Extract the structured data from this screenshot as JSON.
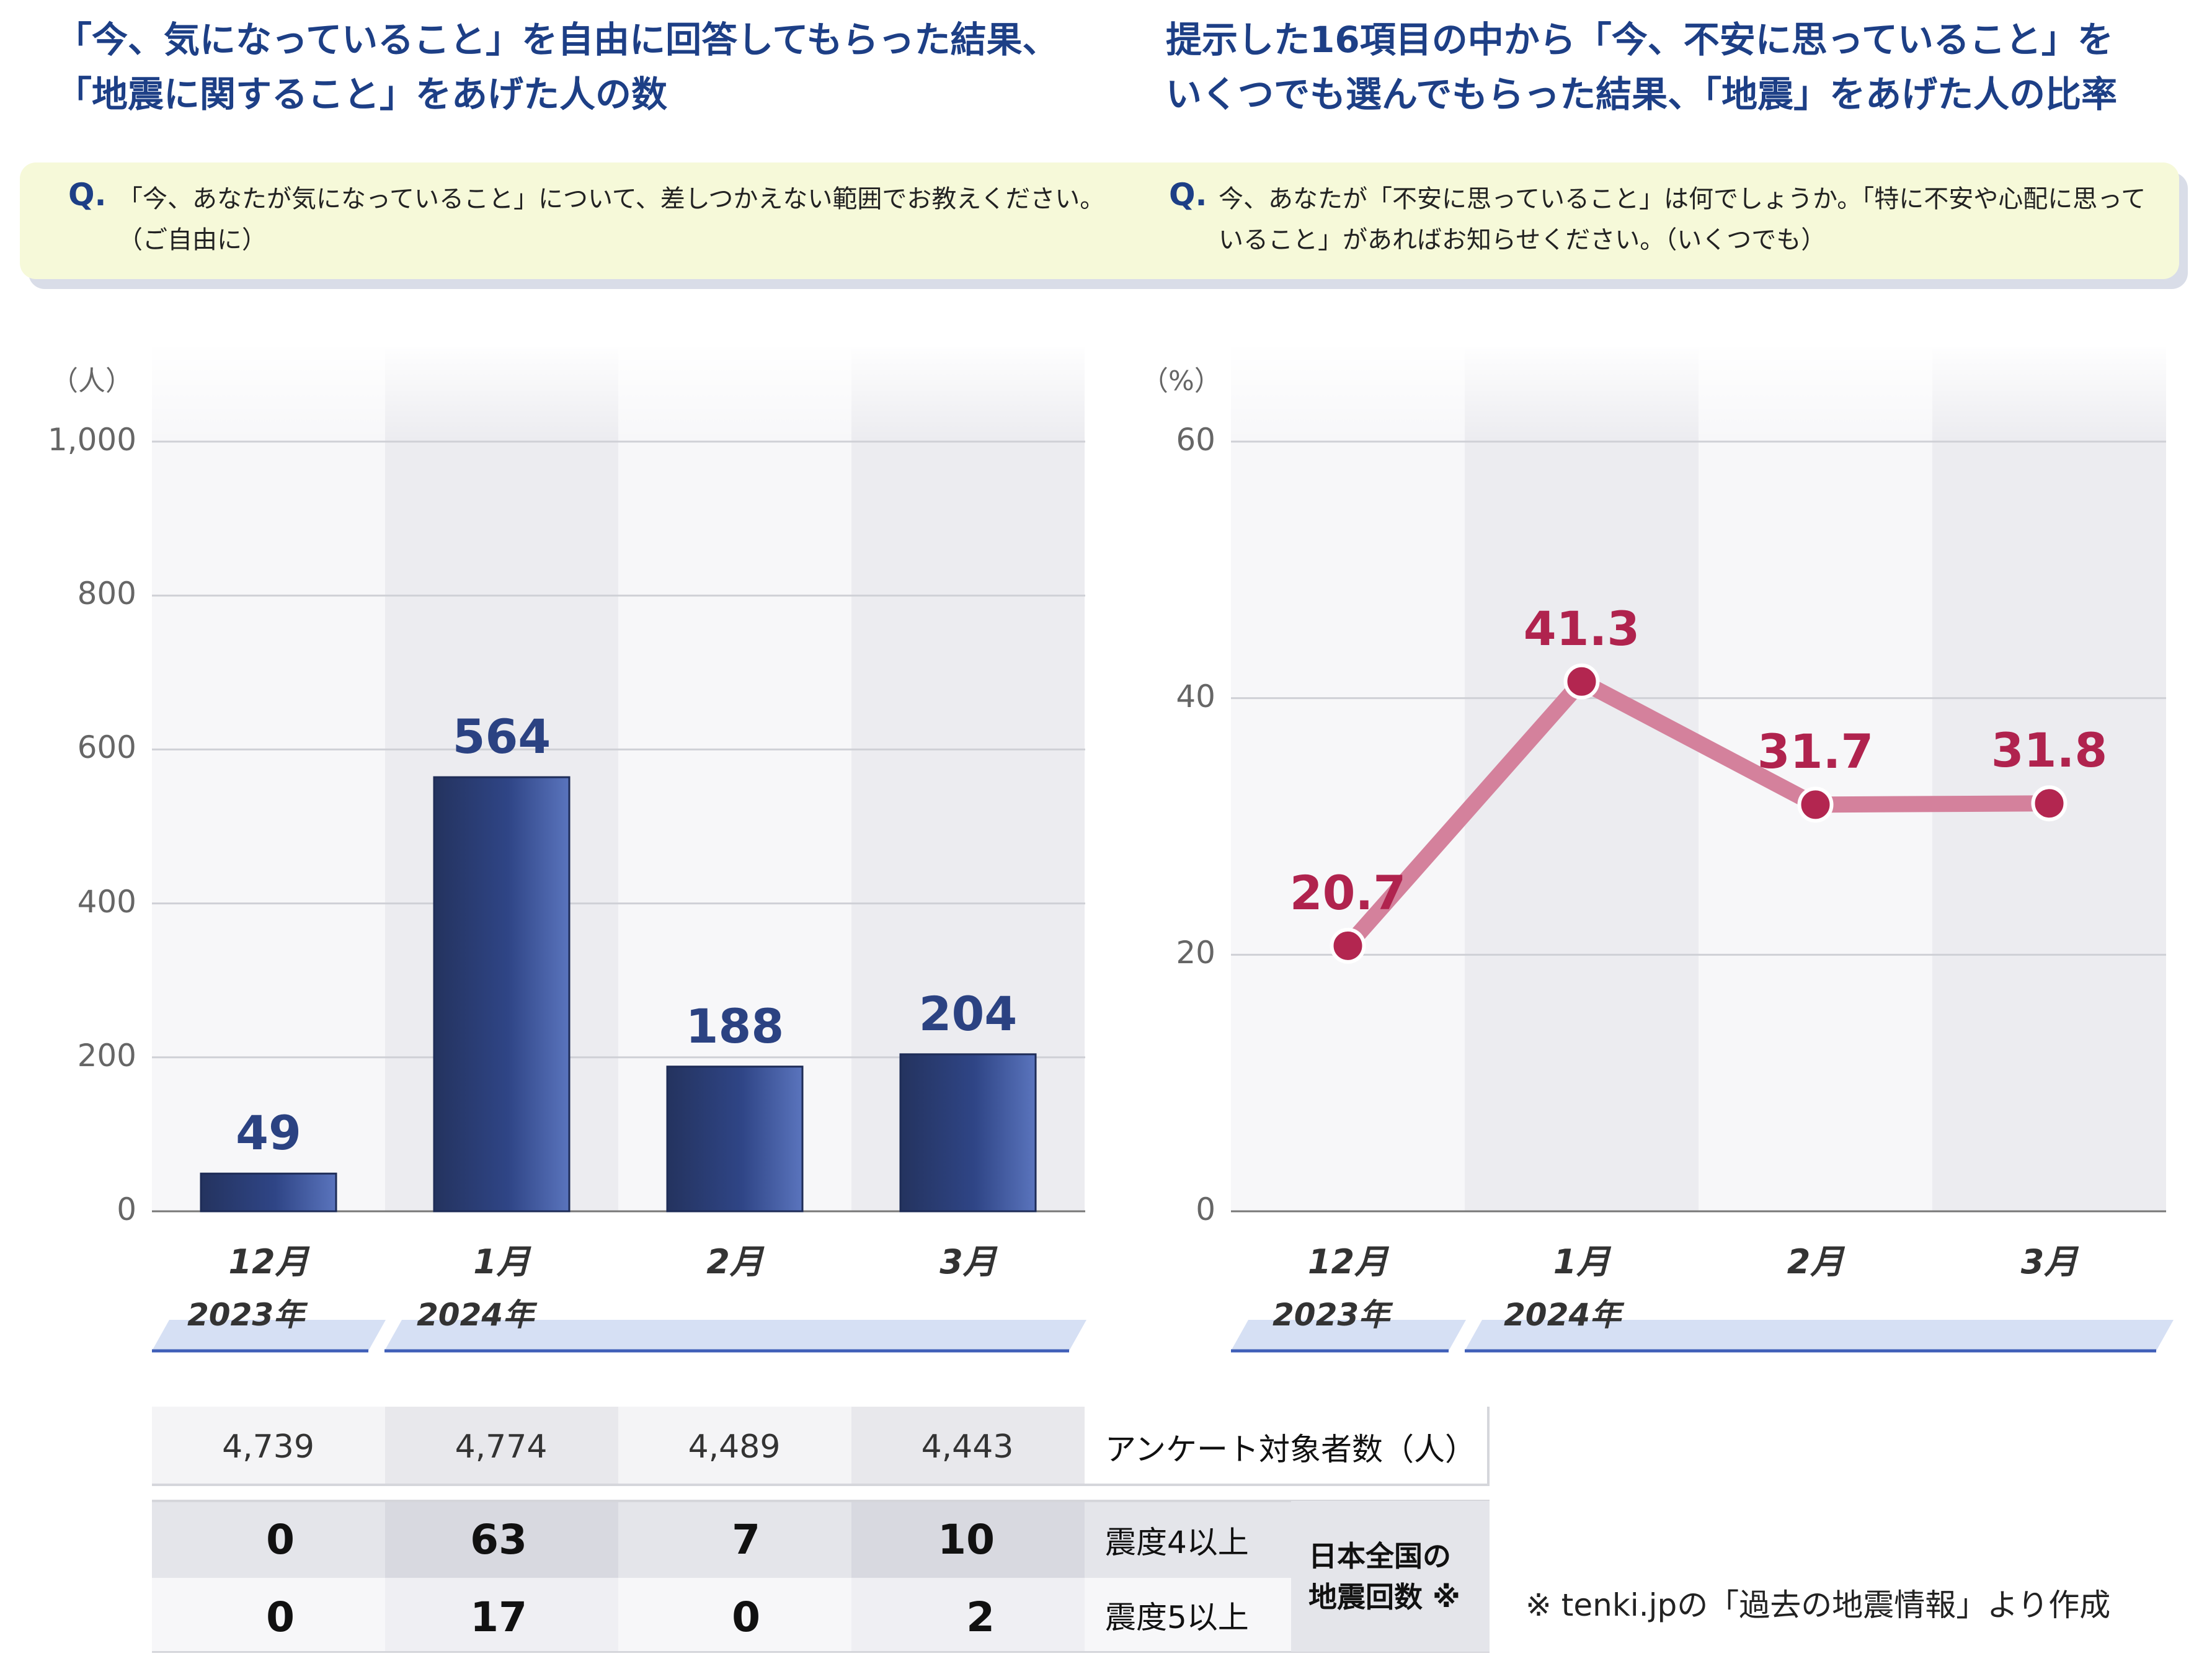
{
  "left_title": {
    "line1": "「今、気になっていること」を自由に回答してもらった結果、",
    "line2": "「地震に関すること」をあげた人の数"
  },
  "right_title": {
    "line1": "提示した16項目の中から「今、不安に思っていること」を",
    "line2": "いくつでも選んでもらった結果、「地震」をあげた人の比率"
  },
  "question_box": {
    "q_mark": "Q.",
    "left_line1": "「今、あなたが気になっていること」について、差しつかえない範囲でお教えください。",
    "left_line2": "（ご自由に）",
    "right_line1": "今、あなたが「不安に思っていること」は何でしょうか。「特に不安や心配に思って",
    "right_line2": "いること」があればお知らせください。（いくつでも）"
  },
  "chart_data": [
    {
      "type": "bar",
      "ylabel": "（人）",
      "categories": [
        "12月",
        "1月",
        "2月",
        "3月"
      ],
      "values": [
        49,
        564,
        188,
        204
      ],
      "value_labels": [
        "49",
        "564",
        "188",
        "204"
      ],
      "ylim": [
        0,
        1000
      ],
      "yticks": [
        0,
        200,
        400,
        600,
        800,
        1000
      ],
      "ytick_labels": [
        "0",
        "200",
        "400",
        "600",
        "800",
        "1,000"
      ],
      "year_labels": [
        "2023年",
        "2024年"
      ],
      "grid": true,
      "color": "#2c3f78"
    },
    {
      "type": "line",
      "ylabel": "（%）",
      "categories": [
        "12月",
        "1月",
        "2月",
        "3月"
      ],
      "values": [
        20.7,
        41.3,
        31.7,
        31.8
      ],
      "value_labels": [
        "20.7",
        "41.3",
        "31.7",
        "31.8"
      ],
      "ylim": [
        0,
        60
      ],
      "yticks": [
        0,
        20,
        40,
        60
      ],
      "ytick_labels": [
        "0",
        "20",
        "40",
        "60"
      ],
      "year_labels": [
        "2023年",
        "2024年"
      ],
      "grid": true,
      "line_color": "#d4819c",
      "marker_color": "#b32650"
    }
  ],
  "table": {
    "respondents_label": "アンケート対象者数（人）",
    "respondents": [
      "4,739",
      "4,774",
      "4,489",
      "4,443"
    ],
    "quake_group_label_line1": "日本全国の",
    "quake_group_label_line2": "地震回数 ※",
    "rows": [
      {
        "label": "震度4以上",
        "values": [
          "0",
          "63",
          "7",
          "10"
        ]
      },
      {
        "label": "震度5以上",
        "values": [
          "0",
          "17",
          "0",
          "2"
        ]
      }
    ]
  },
  "footnote": "※ tenki.jpの「過去の地震情報」より作成"
}
